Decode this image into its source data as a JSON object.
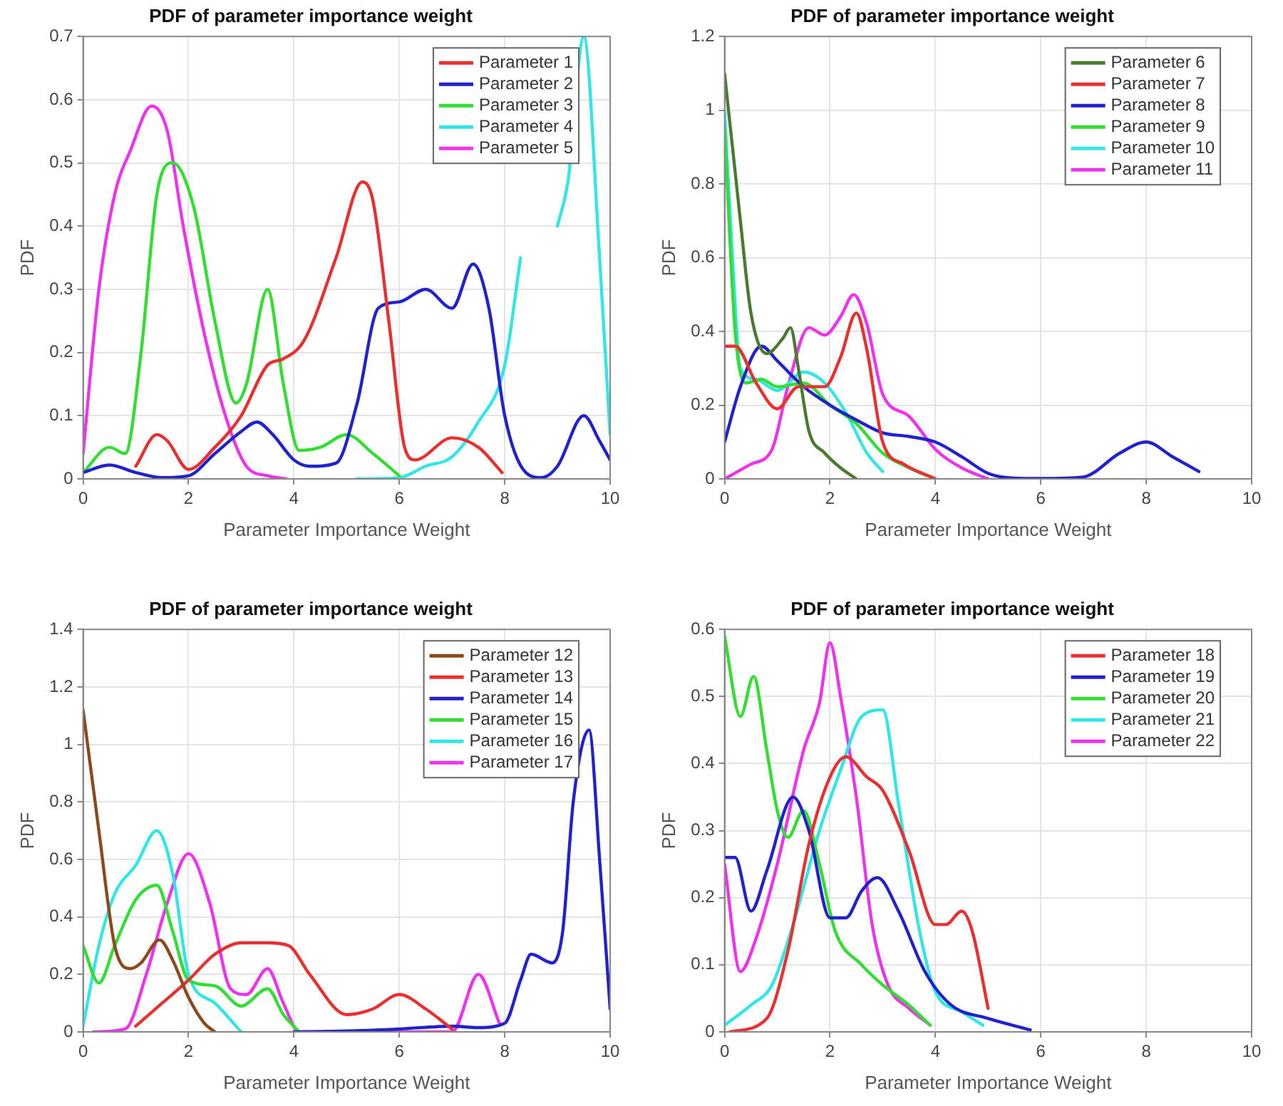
{
  "chart_data": [
    {
      "type": "line",
      "title": "PDF of parameter importance weight",
      "xlabel": "Parameter Importance Weight",
      "ylabel": "PDF",
      "xlim": [
        0,
        10
      ],
      "xticks": [
        0,
        2,
        4,
        6,
        8,
        10
      ],
      "ylim": [
        0,
        0.7
      ],
      "yticks": [
        0,
        0.1,
        0.2,
        0.3,
        0.4,
        0.5,
        0.6,
        0.7
      ],
      "grid": true,
      "legend": "top right",
      "marker": "none",
      "line_style": "solid",
      "series": [
        {
          "name": "Parameter 1",
          "color": "#e83030",
          "x": [
            1,
            1.4,
            1.6,
            2,
            2.5,
            3,
            3.5,
            3.8,
            4.2,
            4.8,
            5.3,
            5.5,
            5.8,
            6.1,
            6.3,
            7,
            7.5,
            7.95
          ],
          "values": [
            0.02,
            0.07,
            0.06,
            0.015,
            0.05,
            0.1,
            0.18,
            0.19,
            0.22,
            0.35,
            0.47,
            0.44,
            0.25,
            0.05,
            0.03,
            0.065,
            0.05,
            0.01
          ]
        },
        {
          "name": "Parameter 2",
          "color": "#2222cc",
          "x": [
            0,
            0.5,
            1,
            1.5,
            2,
            2.5,
            3,
            3.3,
            3.6,
            4,
            4.3,
            4.8,
            5.2,
            5.6,
            6,
            6.5,
            7,
            7.4,
            7.7,
            8,
            8.4,
            8.7,
            9,
            9.5,
            9.8,
            10
          ],
          "values": [
            0.01,
            0.022,
            0.01,
            0.002,
            0.005,
            0.04,
            0.075,
            0.09,
            0.07,
            0.03,
            0.02,
            0.025,
            0.12,
            0.27,
            0.28,
            0.3,
            0.27,
            0.34,
            0.27,
            0.1,
            0.01,
            0.002,
            0.02,
            0.1,
            0.06,
            0.03
          ]
        },
        {
          "name": "Parameter 3",
          "color": "#33dd33",
          "x": [
            0,
            0.5,
            0.8,
            1.1,
            1.4,
            1.7,
            2.1,
            2.5,
            2.9,
            3.1,
            3.5,
            3.8,
            4.1,
            4.5,
            5,
            5.5,
            6
          ],
          "values": [
            0.01,
            0.05,
            0.04,
            0.2,
            0.45,
            0.5,
            0.43,
            0.25,
            0.12,
            0.15,
            0.3,
            0.15,
            0.045,
            0.05,
            0.07,
            0.04,
            0.005
          ]
        },
        {
          "name": "Parameter 4",
          "color": "#33e6e6",
          "x": [
            5.2,
            6,
            6.5,
            7,
            7.5,
            8,
            8.3,
            8.6,
            9,
            9.2,
            9.5,
            9.8,
            10
          ],
          "values": [
            0,
            0.002,
            0.02,
            0.035,
            0.09,
            0.18,
            0.35,
            null,
            0.4,
            0.47,
            0.7,
            0.35,
            0.07
          ]
        },
        {
          "name": "Parameter 5",
          "color": "#ee33ee",
          "x": [
            0,
            0.3,
            0.6,
            0.9,
            1.3,
            1.6,
            1.9,
            2.3,
            2.7,
            3.1,
            3.5,
            3.85
          ],
          "values": [
            0.04,
            0.3,
            0.45,
            0.52,
            0.59,
            0.55,
            0.4,
            0.23,
            0.1,
            0.02,
            0.005,
            0
          ]
        }
      ]
    },
    {
      "type": "line",
      "title": "PDF of parameter importance weight",
      "xlabel": "Parameter Importance Weight",
      "ylabel": "PDF",
      "xlim": [
        0,
        10
      ],
      "xticks": [
        0,
        2,
        4,
        6,
        8,
        10
      ],
      "ylim": [
        0,
        1.2
      ],
      "yticks": [
        0,
        0.2,
        0.4,
        0.6,
        0.8,
        1,
        1.2
      ],
      "grid": true,
      "legend": "top right",
      "marker": "none",
      "line_style": "solid",
      "series": [
        {
          "name": "Parameter 6",
          "color": "#4a7a30",
          "x": [
            0,
            0.3,
            0.5,
            0.8,
            1.1,
            1.25,
            1.4,
            1.6,
            1.9,
            2.2,
            2.5
          ],
          "values": [
            1.1,
            0.7,
            0.45,
            0.34,
            0.38,
            0.41,
            0.3,
            0.13,
            0.07,
            0.03,
            0
          ]
        },
        {
          "name": "Parameter 7",
          "color": "#e83030",
          "x": [
            0,
            0.2,
            0.6,
            1,
            1.4,
            1.9,
            2.2,
            2.5,
            2.7,
            3,
            3.4,
            4
          ],
          "values": [
            0.36,
            0.36,
            0.26,
            0.19,
            0.25,
            0.25,
            0.33,
            0.45,
            0.35,
            0.1,
            0.04,
            0
          ]
        },
        {
          "name": "Parameter 8",
          "color": "#2222cc",
          "x": [
            0,
            0.3,
            0.7,
            1,
            1.5,
            2,
            2.5,
            3,
            3.5,
            4,
            4.5,
            5,
            5.5,
            6,
            6.8,
            7.5,
            8,
            8.5,
            9
          ],
          "values": [
            0.1,
            0.25,
            0.36,
            0.32,
            0.25,
            0.2,
            0.16,
            0.125,
            0.115,
            0.1,
            0.06,
            0.015,
            0.002,
            0.001,
            0.005,
            0.07,
            0.1,
            0.06,
            0.02
          ]
        },
        {
          "name": "Parameter 9",
          "color": "#33dd33",
          "x": [
            0,
            0.2,
            0.4,
            0.7,
            1,
            1.5,
            2,
            2.5,
            3,
            3.5,
            4
          ],
          "values": [
            0.95,
            0.4,
            0.26,
            0.27,
            0.25,
            0.26,
            0.2,
            0.15,
            0.07,
            0.03,
            0
          ]
        },
        {
          "name": "Parameter 10",
          "color": "#33e6e6",
          "x": [
            0,
            0.15,
            0.3,
            0.6,
            1,
            1.5,
            1.9,
            2.3,
            2.7,
            3
          ],
          "values": [
            1,
            0.6,
            0.3,
            0.27,
            0.24,
            0.29,
            0.26,
            0.18,
            0.07,
            0.02
          ]
        },
        {
          "name": "Parameter 11",
          "color": "#ee33ee",
          "x": [
            0,
            0.5,
            0.9,
            1.2,
            1.6,
            1.9,
            2.2,
            2.45,
            2.7,
            3,
            3.5,
            4,
            4.5,
            5
          ],
          "values": [
            0,
            0.04,
            0.08,
            0.25,
            0.41,
            0.39,
            0.44,
            0.5,
            0.42,
            0.23,
            0.17,
            0.08,
            0.03,
            0
          ]
        }
      ]
    },
    {
      "type": "line",
      "title": "PDF of parameter importance weight",
      "xlabel": "Parameter Importance Weight",
      "ylabel": "PDF",
      "xlim": [
        0,
        10
      ],
      "xticks": [
        0,
        2,
        4,
        6,
        8,
        10
      ],
      "ylim": [
        0,
        1.4
      ],
      "yticks": [
        0,
        0.2,
        0.4,
        0.6,
        0.8,
        1,
        1.2,
        1.4
      ],
      "grid": true,
      "legend": "top right",
      "marker": "none",
      "line_style": "solid",
      "series": [
        {
          "name": "Parameter 12",
          "color": "#8b4a1e",
          "x": [
            0,
            0.3,
            0.6,
            0.9,
            1.1,
            1.45,
            1.7,
            2,
            2.3,
            2.5
          ],
          "values": [
            1.12,
            0.7,
            0.3,
            0.22,
            0.24,
            0.32,
            0.25,
            0.12,
            0.03,
            0
          ]
        },
        {
          "name": "Parameter 13",
          "color": "#e83030",
          "x": [
            1,
            1.5,
            2,
            2.5,
            3,
            3.5,
            3.9,
            4.3,
            5,
            5.5,
            6,
            6.5,
            7
          ],
          "values": [
            0.02,
            0.1,
            0.18,
            0.27,
            0.31,
            0.31,
            0.3,
            0.2,
            0.06,
            0.08,
            0.13,
            0.08,
            0.01
          ]
        },
        {
          "name": "Parameter 14",
          "color": "#2222cc",
          "x": [
            4,
            5,
            6,
            7,
            7.5,
            8,
            8.3,
            8.5,
            8.9,
            9.1,
            9.3,
            9.6,
            9.8,
            10
          ],
          "values": [
            0,
            0.003,
            0.01,
            0.02,
            0.015,
            0.03,
            0.18,
            0.27,
            0.24,
            0.35,
            0.8,
            1.05,
            0.6,
            0.08
          ]
        },
        {
          "name": "Parameter 15",
          "color": "#33dd33",
          "x": [
            0,
            0.3,
            0.6,
            1,
            1.4,
            1.7,
            2,
            2.5,
            3,
            3.5,
            3.8,
            4.1
          ],
          "values": [
            0.3,
            0.17,
            0.3,
            0.46,
            0.51,
            0.35,
            0.18,
            0.16,
            0.09,
            0.15,
            0.06,
            0
          ]
        },
        {
          "name": "Parameter 16",
          "color": "#33e6e6",
          "x": [
            0,
            0.3,
            0.6,
            1,
            1.4,
            1.7,
            2,
            2.5,
            3
          ],
          "values": [
            0.02,
            0.3,
            0.48,
            0.58,
            0.7,
            0.55,
            0.2,
            0.1,
            0
          ]
        },
        {
          "name": "Parameter 17",
          "color": "#ee33ee",
          "x": [
            0.2,
            0.8,
            1.2,
            1.6,
            2,
            2.4,
            2.8,
            3.1,
            3.5,
            3.8,
            4.1,
            5,
            6,
            7,
            7.5,
            7.9
          ],
          "values": [
            0,
            0.01,
            0.2,
            0.45,
            0.62,
            0.45,
            0.15,
            0.13,
            0.22,
            0.1,
            0,
            0,
            0,
            0,
            0.2,
            0.03
          ]
        }
      ]
    },
    {
      "type": "line",
      "title": "PDF of parameter importance weight",
      "xlabel": "Parameter Importance Weight",
      "ylabel": "PDF",
      "xlim": [
        0,
        10
      ],
      "xticks": [
        0,
        2,
        4,
        6,
        8,
        10
      ],
      "ylim": [
        0,
        0.6
      ],
      "yticks": [
        0,
        0.1,
        0.2,
        0.3,
        0.4,
        0.5,
        0.6
      ],
      "grid": true,
      "legend": "top right",
      "marker": "none",
      "line_style": "solid",
      "series": [
        {
          "name": "Parameter 18",
          "color": "#e83030",
          "x": [
            0.1,
            0.8,
            1.2,
            1.6,
            2,
            2.3,
            2.7,
            3,
            3.5,
            4,
            4.2,
            4.5,
            4.7,
            5
          ],
          "values": [
            0,
            0.02,
            0.12,
            0.28,
            0.38,
            0.41,
            0.38,
            0.36,
            0.27,
            0.16,
            0.16,
            0.18,
            0.15,
            0.035
          ]
        },
        {
          "name": "Parameter 19",
          "color": "#2222cc",
          "x": [
            0,
            0.2,
            0.5,
            0.8,
            1.3,
            1.6,
            2,
            2.3,
            2.6,
            2.9,
            3.3,
            3.8,
            4.3,
            5,
            5.8
          ],
          "values": [
            0.26,
            0.26,
            0.18,
            0.24,
            0.35,
            0.3,
            0.17,
            0.17,
            0.21,
            0.23,
            0.18,
            0.09,
            0.04,
            0.02,
            0.003
          ]
        },
        {
          "name": "Parameter 20",
          "color": "#33dd33",
          "x": [
            0,
            0.3,
            0.55,
            0.8,
            1,
            1.2,
            1.5,
            1.8,
            2.1,
            2.6,
            3,
            3.5,
            3.9
          ],
          "values": [
            0.59,
            0.47,
            0.53,
            0.42,
            0.33,
            0.29,
            0.33,
            0.25,
            0.15,
            0.1,
            0.07,
            0.04,
            0.01
          ]
        },
        {
          "name": "Parameter 21",
          "color": "#33e6e6",
          "x": [
            0,
            0.5,
            0.9,
            1.3,
            1.8,
            2.2,
            2.6,
            3,
            3.3,
            3.7,
            4,
            4.5,
            4.9
          ],
          "values": [
            0.01,
            0.04,
            0.07,
            0.16,
            0.3,
            0.39,
            0.47,
            0.48,
            0.34,
            0.15,
            0.06,
            0.03,
            0.01
          ]
        },
        {
          "name": "Parameter 22",
          "color": "#ee33ee",
          "x": [
            0,
            0.3,
            0.6,
            1,
            1.5,
            1.8,
            2,
            2.2,
            2.5,
            2.8,
            3.1,
            3.5,
            3.9
          ],
          "values": [
            0.25,
            0.09,
            0.14,
            0.25,
            0.42,
            0.49,
            0.58,
            0.5,
            0.35,
            0.16,
            0.07,
            0.035,
            0.01
          ]
        }
      ]
    }
  ]
}
